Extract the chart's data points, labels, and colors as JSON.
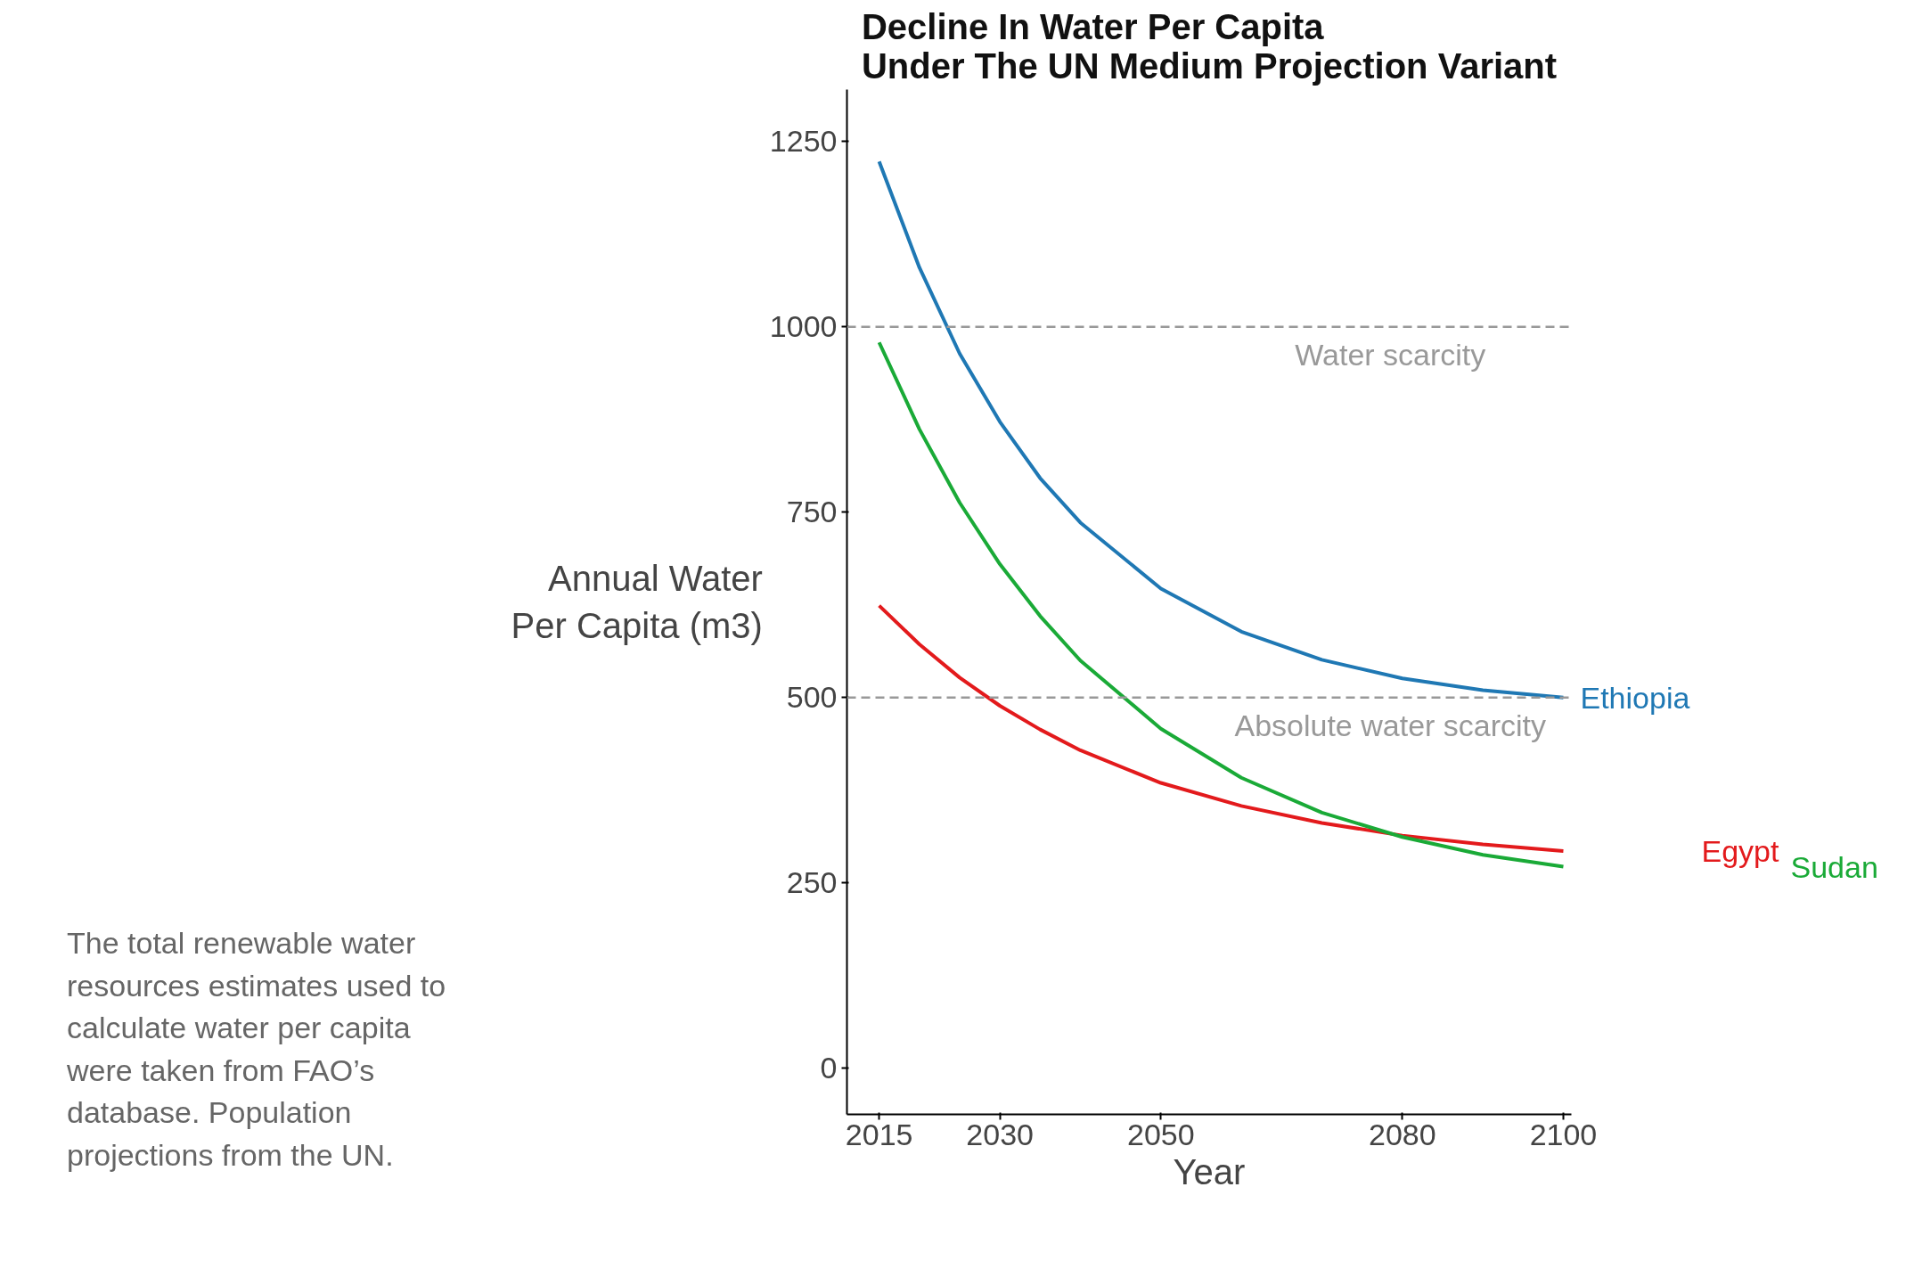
{
  "chart_data": {
    "type": "line",
    "title": "Decline In Water Per Capita\nUnder The UN Medium Projection Variant",
    "xlabel": "Year",
    "ylabel": "Annual Water\nPer Capita (m3)",
    "x": [
      2015,
      2020,
      2025,
      2030,
      2035,
      2040,
      2050,
      2060,
      2070,
      2080,
      2090,
      2100
    ],
    "series": [
      {
        "name": "Ethiopia",
        "color": "#1f78b4",
        "values": [
          1223,
          1080,
          964,
          872,
          796,
          736,
          647,
          589,
          551,
          526,
          510,
          500
        ]
      },
      {
        "name": "Egypt",
        "color": "#e31a1c",
        "values": [
          624,
          572,
          527,
          489,
          457,
          429,
          385,
          354,
          331,
          314,
          302,
          293
        ]
      },
      {
        "name": "Sudan",
        "color": "#1aaa37",
        "values": [
          979,
          862,
          763,
          680,
          610,
          550,
          458,
          392,
          345,
          312,
          288,
          272
        ]
      }
    ],
    "xlim": [
      2011,
      2101
    ],
    "ylim": [
      -62,
      1320
    ],
    "xticks": [
      2015,
      2030,
      2050,
      2080,
      2100
    ],
    "yticks": [
      0,
      250,
      500,
      750,
      1000,
      1250
    ],
    "ref_lines": [
      {
        "axis": "y",
        "value": 1000,
        "label": "Water scarcity",
        "color": "#999999",
        "line_style": "dashed"
      },
      {
        "axis": "y",
        "value": 500,
        "label": "Absolute water scarcity",
        "color": "#999999",
        "line_style": "dashed"
      }
    ],
    "annotations": [
      "The total renewable water resources estimates used to calculate water per capita were taken from FAO’s database. Population projections from the UN."
    ],
    "grid": false,
    "marker": "none",
    "line_style": "solid"
  }
}
